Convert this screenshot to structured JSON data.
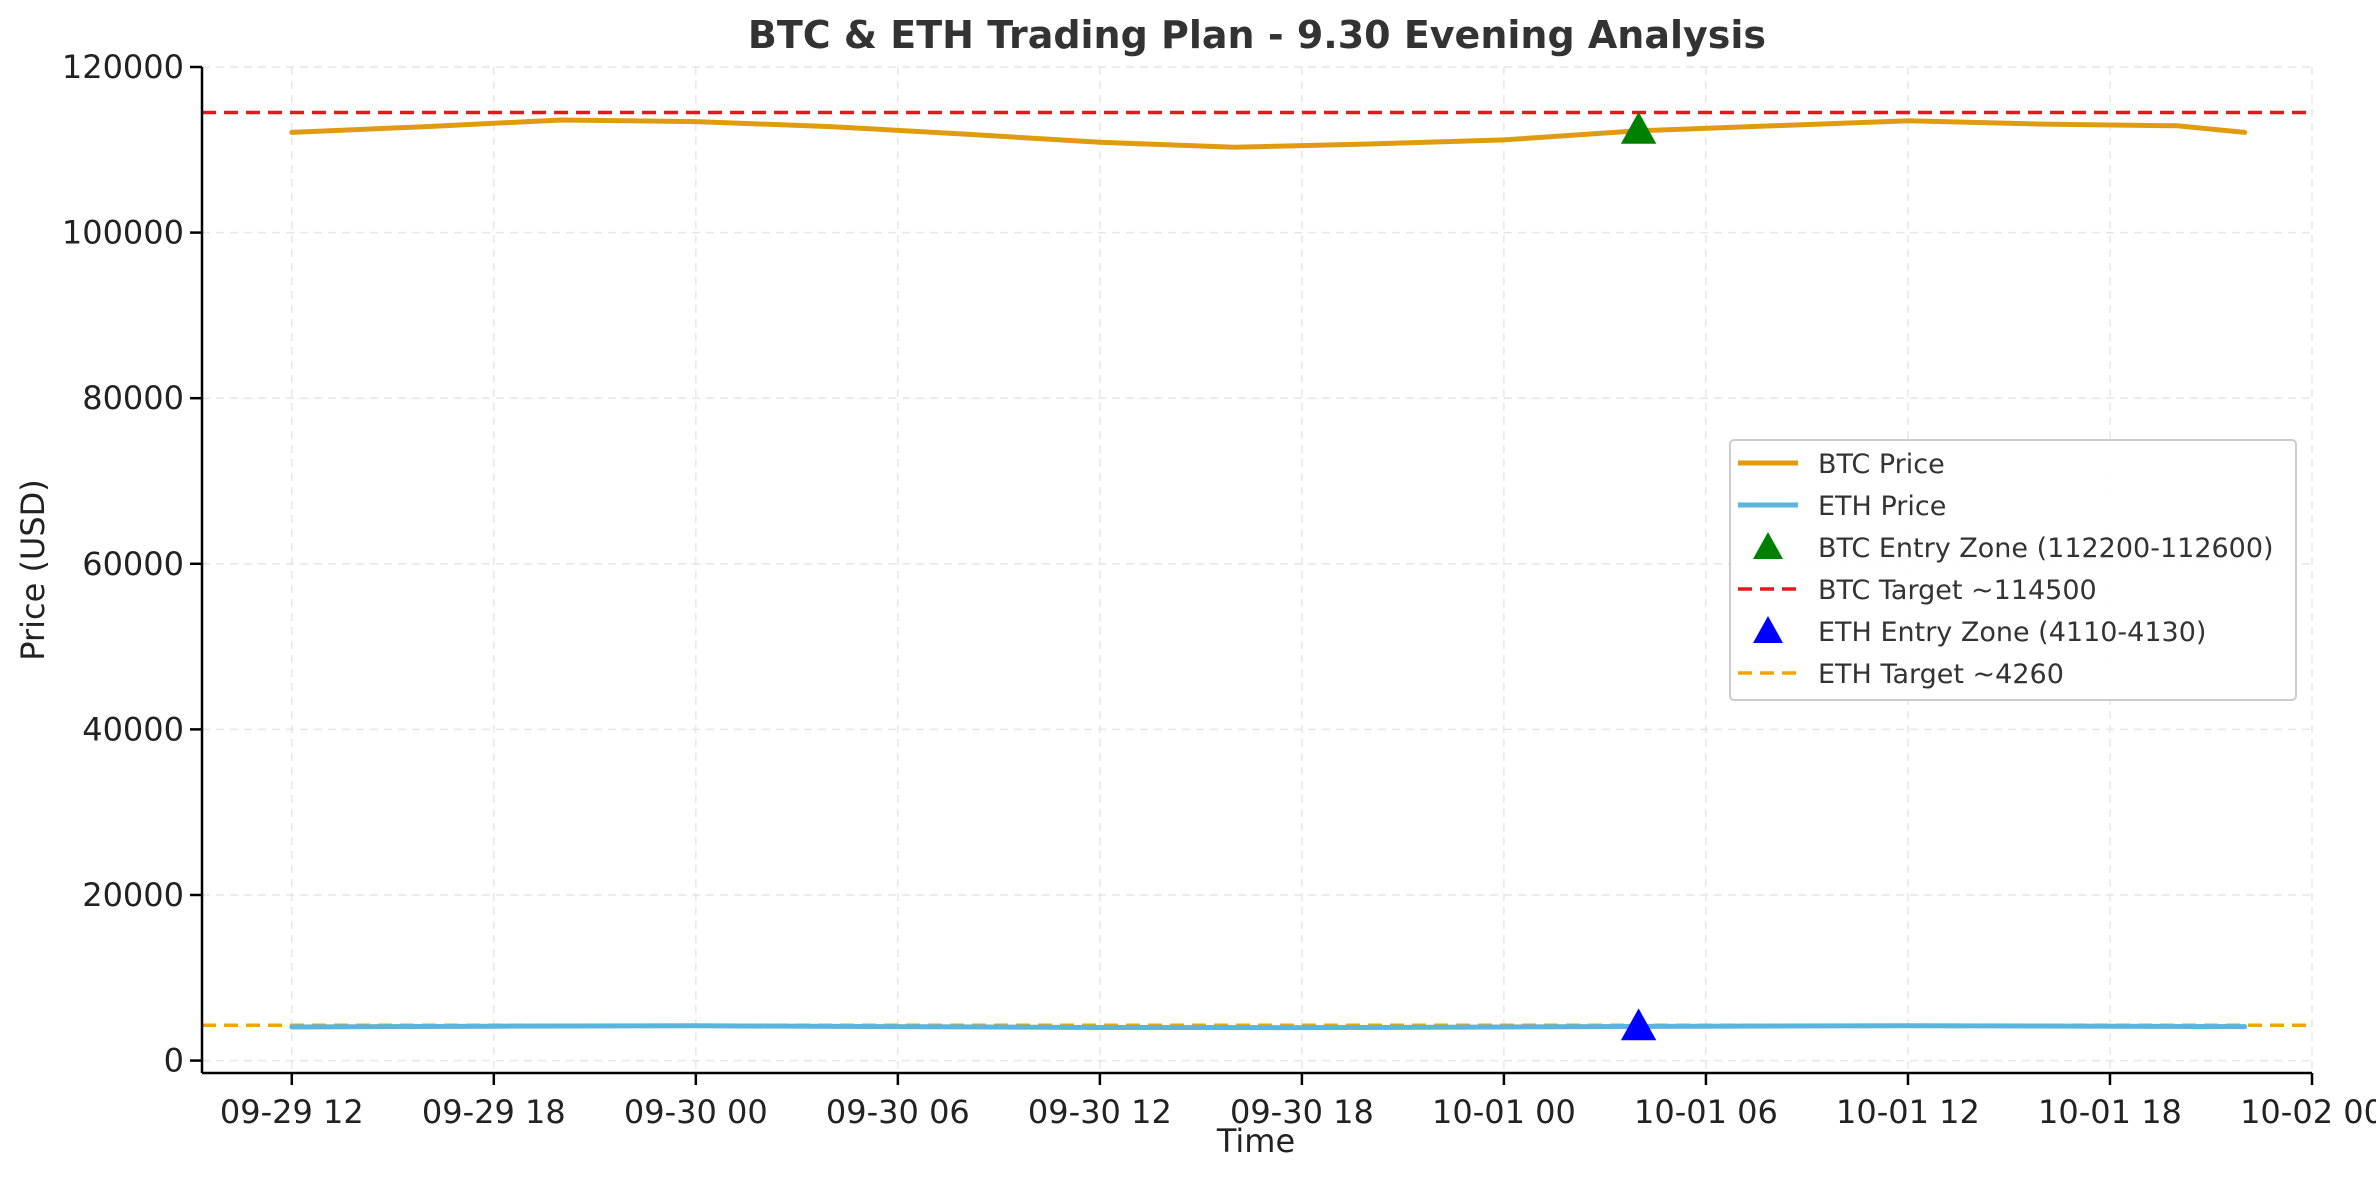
{
  "chart_data": {
    "type": "line",
    "title": "BTC & ETH Trading Plan - 9.30 Evening Analysis",
    "xlabel": "Time",
    "ylabel": "Price (USD)",
    "ylim": [
      -1500,
      120000
    ],
    "yticks": [
      0,
      20000,
      40000,
      60000,
      80000,
      100000,
      120000
    ],
    "xlim": [
      "2025-09-29 09:20",
      "2025-10-02 00:00"
    ],
    "xticks": [
      {
        "value": "2025-09-29 12:00",
        "label": "09-29 12"
      },
      {
        "value": "2025-09-29 18:00",
        "label": "09-29 18"
      },
      {
        "value": "2025-09-30 00:00",
        "label": "09-30 00"
      },
      {
        "value": "2025-09-30 06:00",
        "label": "09-30 06"
      },
      {
        "value": "2025-09-30 12:00",
        "label": "09-30 12"
      },
      {
        "value": "2025-09-30 18:00",
        "label": "09-30 18"
      },
      {
        "value": "2025-10-01 00:00",
        "label": "10-01 00"
      },
      {
        "value": "2025-10-01 06:00",
        "label": "10-01 06"
      },
      {
        "value": "2025-10-01 12:00",
        "label": "10-01 12"
      },
      {
        "value": "2025-10-01 18:00",
        "label": "10-01 18"
      },
      {
        "value": "2025-10-02 00:00",
        "label": "10-02 00"
      }
    ],
    "grid": true,
    "legend_position": "center-right",
    "series": [
      {
        "name": "BTC Price",
        "kind": "line",
        "color": "#E09B0F",
        "points": [
          {
            "x": "2025-09-29 12:00",
            "y": 112100
          },
          {
            "x": "2025-09-29 16:00",
            "y": 112800
          },
          {
            "x": "2025-09-29 20:00",
            "y": 113600
          },
          {
            "x": "2025-09-30 00:00",
            "y": 113400
          },
          {
            "x": "2025-09-30 04:00",
            "y": 112800
          },
          {
            "x": "2025-09-30 08:00",
            "y": 111900
          },
          {
            "x": "2025-09-30 12:00",
            "y": 110900
          },
          {
            "x": "2025-09-30 16:00",
            "y": 110300
          },
          {
            "x": "2025-09-30 20:00",
            "y": 110700
          },
          {
            "x": "2025-10-01 00:00",
            "y": 111200
          },
          {
            "x": "2025-10-01 04:00",
            "y": 112300
          },
          {
            "x": "2025-10-01 08:00",
            "y": 112900
          },
          {
            "x": "2025-10-01 12:00",
            "y": 113500
          },
          {
            "x": "2025-10-01 16:00",
            "y": 113100
          },
          {
            "x": "2025-10-01 20:00",
            "y": 112900
          },
          {
            "x": "2025-10-01 22:00",
            "y": 112100
          }
        ]
      },
      {
        "name": "ETH Price",
        "kind": "line",
        "color": "#5BB4DC",
        "points": [
          {
            "x": "2025-09-29 12:00",
            "y": 4050
          },
          {
            "x": "2025-09-29 18:00",
            "y": 4150
          },
          {
            "x": "2025-09-30 00:00",
            "y": 4200
          },
          {
            "x": "2025-09-30 06:00",
            "y": 4100
          },
          {
            "x": "2025-09-30 12:00",
            "y": 4000
          },
          {
            "x": "2025-09-30 18:00",
            "y": 3980
          },
          {
            "x": "2025-10-01 00:00",
            "y": 4050
          },
          {
            "x": "2025-10-01 06:00",
            "y": 4150
          },
          {
            "x": "2025-10-01 12:00",
            "y": 4200
          },
          {
            "x": "2025-10-01 18:00",
            "y": 4150
          },
          {
            "x": "2025-10-01 22:00",
            "y": 4100
          }
        ]
      },
      {
        "name": "BTC Entry Zone (112200-112600)",
        "kind": "marker",
        "marker": "triangle",
        "color": "#008000",
        "points": [
          {
            "x": "2025-10-01 04:00",
            "y": 112400
          }
        ]
      },
      {
        "name": "BTC Target ~114500",
        "kind": "hline",
        "color": "#E31A1C",
        "y": 114500
      },
      {
        "name": "ETH Entry Zone (4110-4130)",
        "kind": "marker",
        "marker": "triangle",
        "color": "#0000FF",
        "points": [
          {
            "x": "2025-10-01 04:00",
            "y": 4120
          }
        ]
      },
      {
        "name": "ETH Target ~4260",
        "kind": "hline",
        "color": "#F0A500",
        "y": 4260
      }
    ]
  }
}
